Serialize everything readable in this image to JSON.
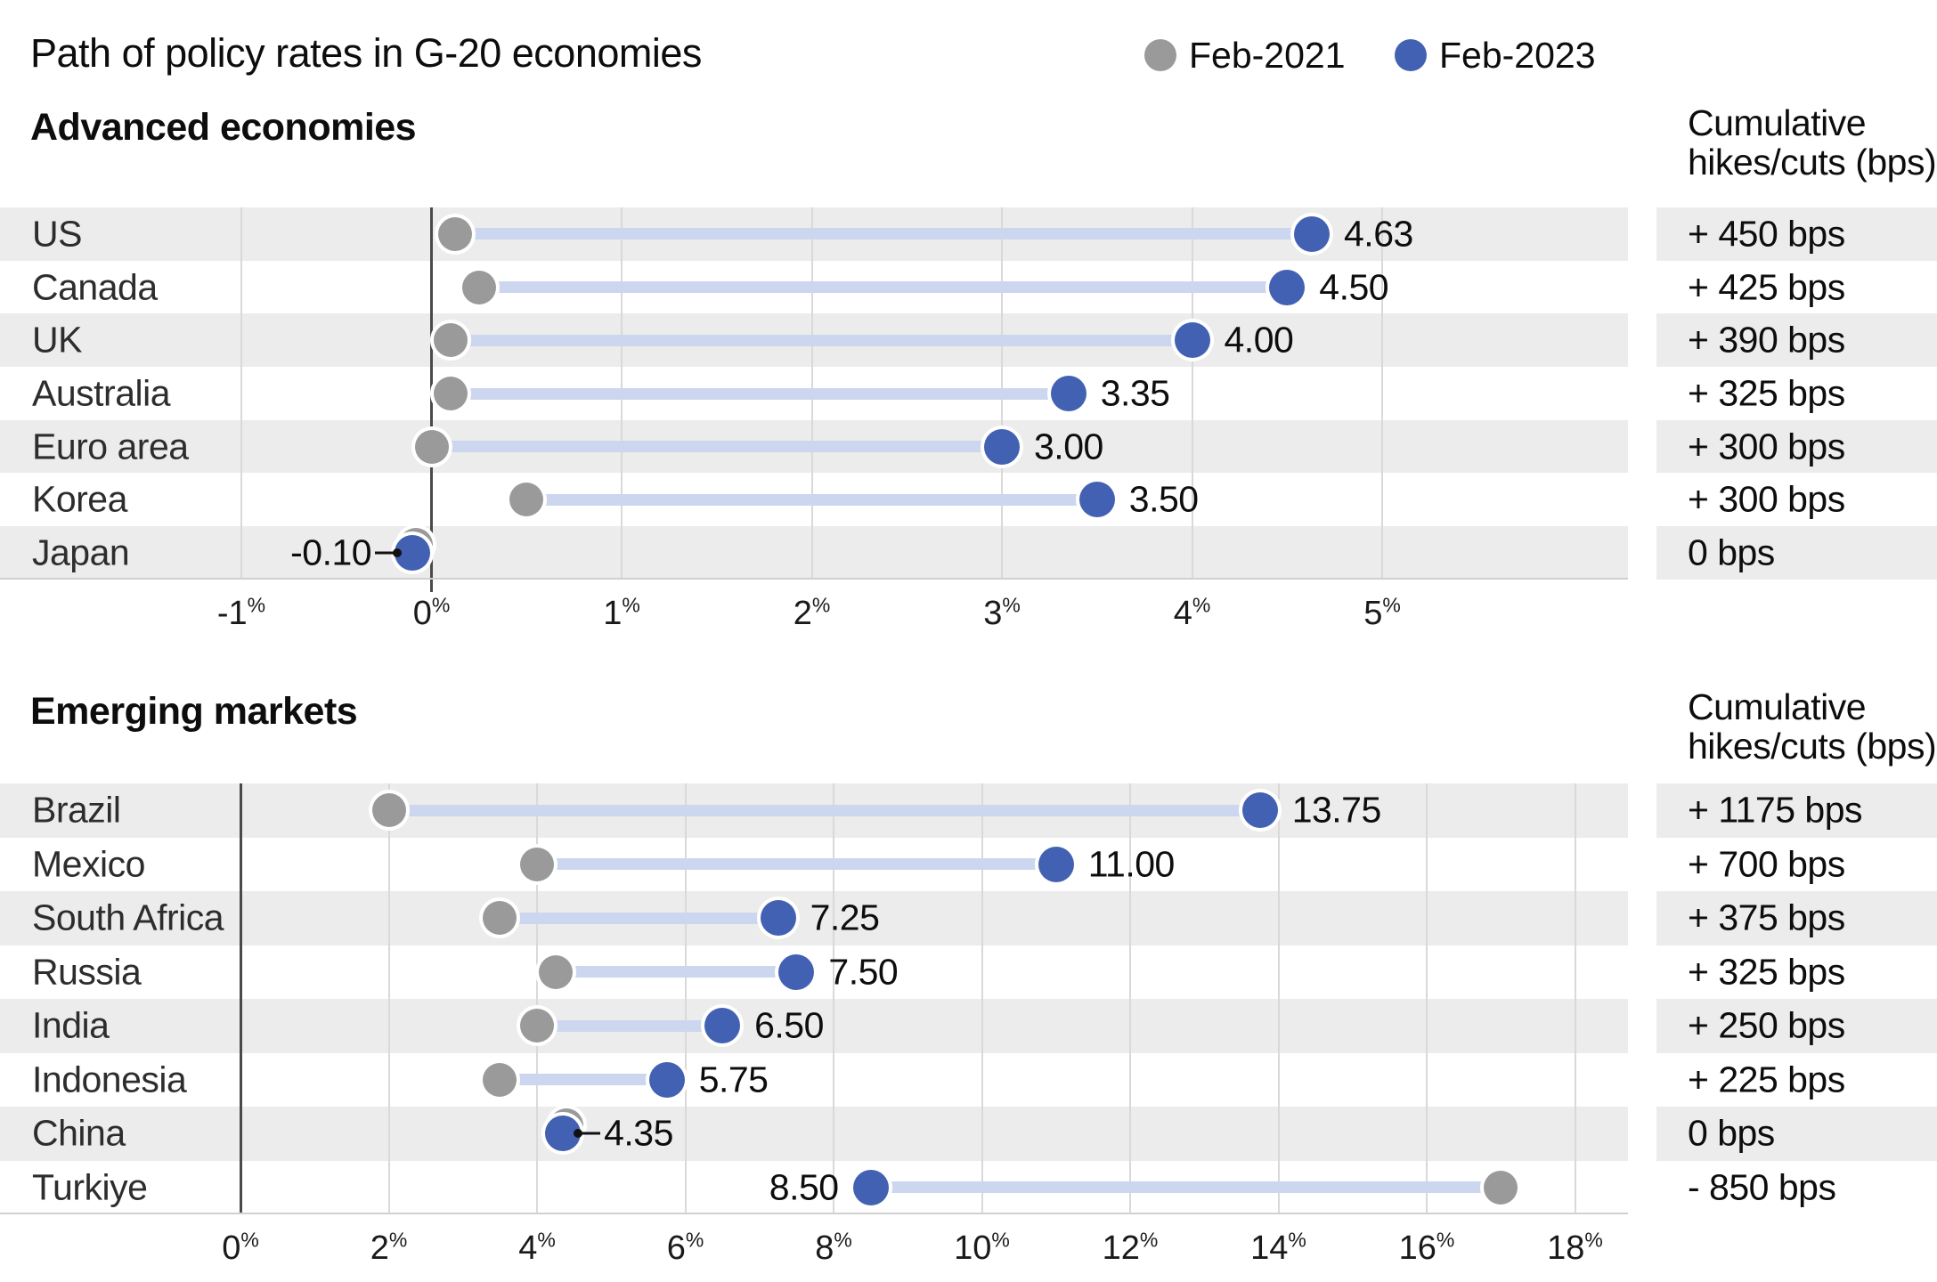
{
  "title": "Path of policy rates in G-20 economies",
  "legend": {
    "items": [
      {
        "label": "Feb-2021",
        "color": "#9a9a9a"
      },
      {
        "label": "Feb-2023",
        "color": "#4361b2"
      }
    ]
  },
  "colors": {
    "dot_feb_2021": "#9a9a9a",
    "dot_feb_2023": "#4361b2",
    "connector_bar": "#ccd6ee",
    "row_band": "#ececec",
    "gridline": "#d9d9d9",
    "zero_line": "#4a4a4a"
  },
  "chart_data": [
    {
      "type": "scatter",
      "variant": "dumbbell",
      "title": "Advanced economies",
      "unit": "%",
      "xlim": [
        -1,
        5
      ],
      "ticks": [
        -1,
        0,
        1,
        2,
        3,
        4,
        5
      ],
      "tick_labels": [
        "-1%",
        "0%",
        "1%",
        "2%",
        "3%",
        "4%",
        "5%"
      ],
      "grid": true,
      "legend_position": "top-right",
      "categories": [
        "US",
        "Canada",
        "UK",
        "Australia",
        "Euro area",
        "Korea",
        "Japan"
      ],
      "series": [
        {
          "name": "Feb-2021",
          "values": [
            0.125,
            0.25,
            0.1,
            0.1,
            0.0,
            0.5,
            -0.1
          ]
        },
        {
          "name": "Feb-2023",
          "values": [
            4.63,
            4.5,
            4.0,
            3.35,
            3.0,
            3.5,
            -0.1
          ]
        }
      ],
      "value_labels": [
        "4.63",
        "4.50",
        "4.00",
        "3.35",
        "3.00",
        "3.50",
        "-0.10"
      ],
      "label_styles": [
        "right",
        "right",
        "right",
        "right",
        "right",
        "right",
        "leader-left"
      ],
      "cumulative_column": {
        "header": "Cumulative hikes/cuts (bps)",
        "values": [
          "+ 450 bps",
          "+ 425 bps",
          "+ 390 bps",
          "+ 325 bps",
          "+ 300 bps",
          "+ 300 bps",
          "0 bps"
        ]
      }
    },
    {
      "type": "scatter",
      "variant": "dumbbell",
      "title": "Emerging markets",
      "unit": "%",
      "xlim": [
        0,
        18
      ],
      "ticks": [
        0,
        2,
        4,
        6,
        8,
        10,
        12,
        14,
        16,
        18
      ],
      "tick_labels": [
        "0%",
        "2%",
        "4%",
        "6%",
        "8%",
        "10%",
        "12%",
        "14%",
        "16%",
        "18%"
      ],
      "grid": true,
      "categories": [
        "Brazil",
        "Mexico",
        "South Africa",
        "Russia",
        "India",
        "Indonesia",
        "China",
        "Turkiye"
      ],
      "series": [
        {
          "name": "Feb-2021",
          "values": [
            2.0,
            4.0,
            3.5,
            4.25,
            4.0,
            3.5,
            4.35,
            17.0
          ]
        },
        {
          "name": "Feb-2023",
          "values": [
            13.75,
            11.0,
            7.25,
            7.5,
            6.5,
            5.75,
            4.35,
            8.5
          ]
        }
      ],
      "value_labels": [
        "13.75",
        "11.00",
        "7.25",
        "7.50",
        "6.50",
        "5.75",
        "4.35",
        "8.50"
      ],
      "label_styles": [
        "right",
        "right",
        "right",
        "right",
        "right",
        "right",
        "leader-right",
        "left"
      ],
      "cumulative_column": {
        "header": "Cumulative hikes/cuts (bps)",
        "values": [
          "+ 1175 bps",
          "+ 700 bps",
          "+ 375 bps",
          "+ 325 bps",
          "+ 250 bps",
          "+ 225 bps",
          "0 bps",
          "- 850 bps"
        ]
      }
    }
  ]
}
